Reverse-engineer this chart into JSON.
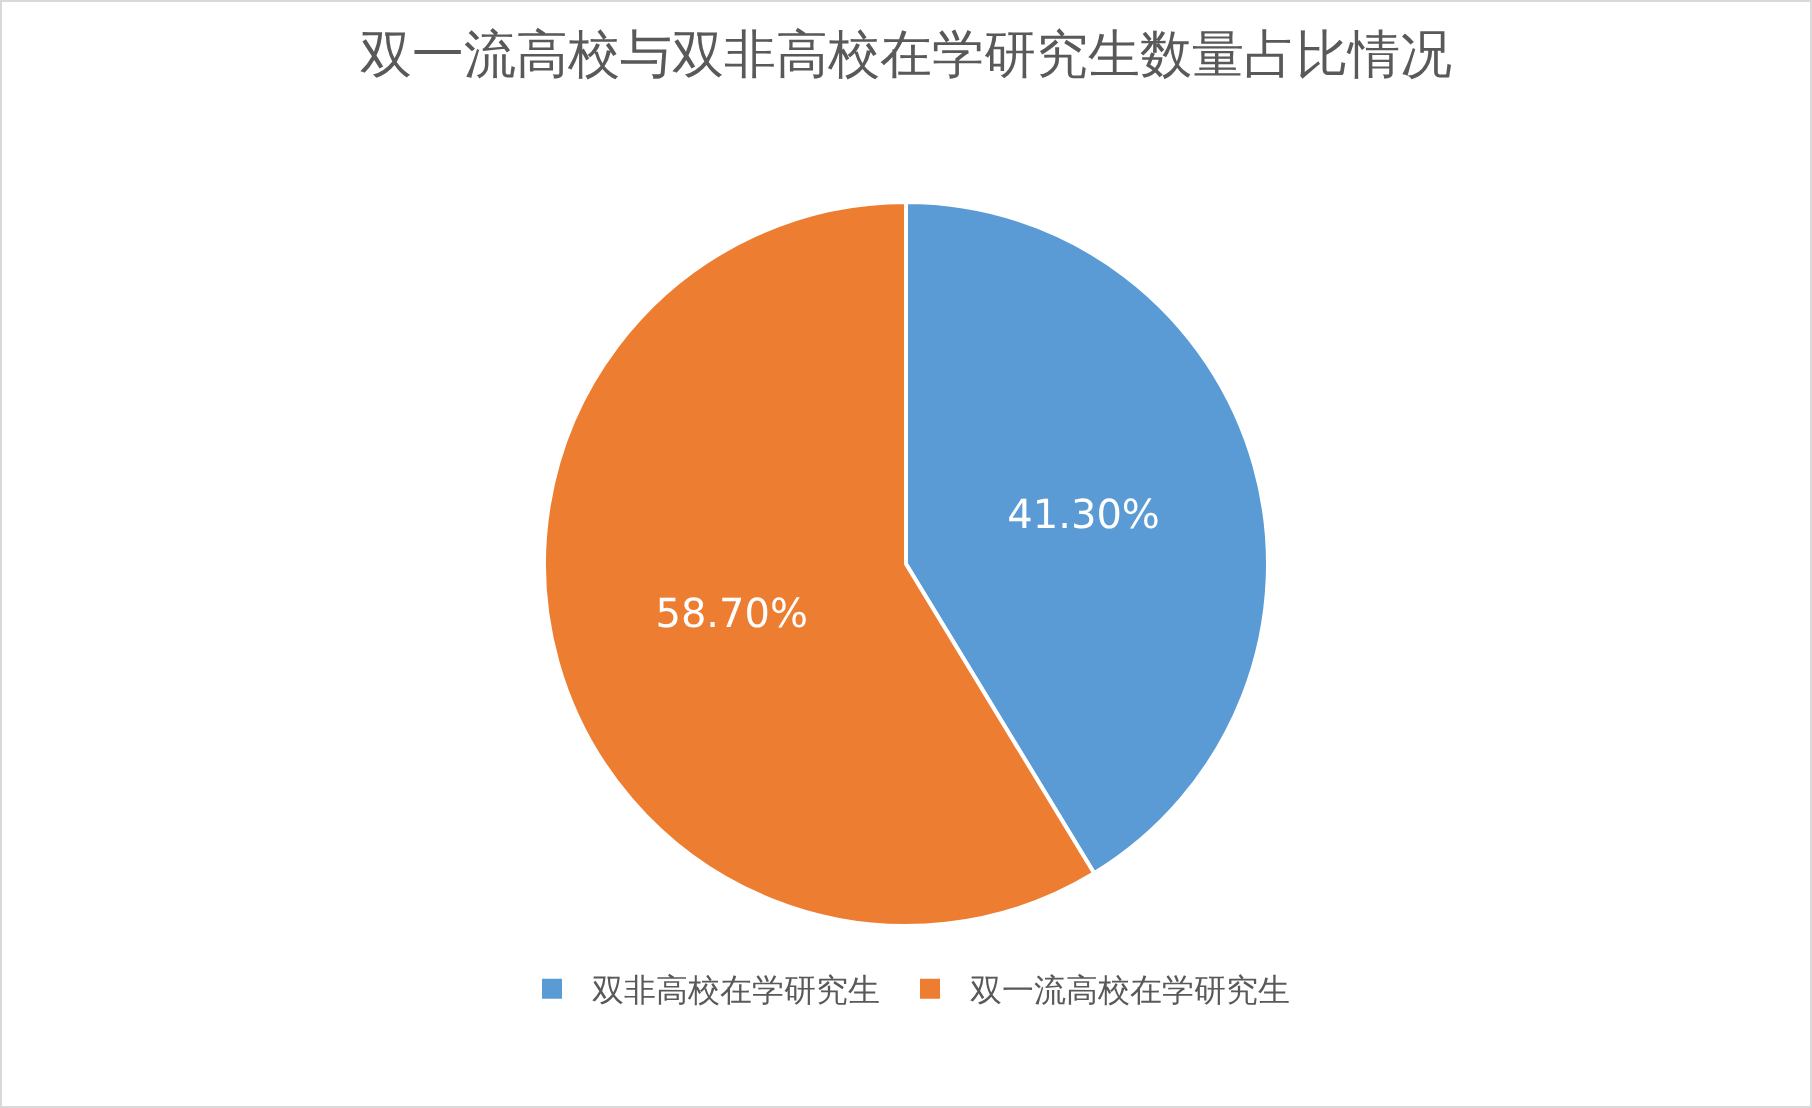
{
  "chart_data": {
    "type": "pie",
    "title": "双一流高校与双非高校在学研究生数量占比情况",
    "categories": [
      "双非高校在学研究生",
      "双一流高校在学研究生"
    ],
    "values": [
      41.3,
      58.7
    ],
    "colors": [
      "#5b9bd5",
      "#ed7d31"
    ],
    "value_labels": [
      "41.30%",
      "58.70%"
    ],
    "legend": "bottom"
  }
}
